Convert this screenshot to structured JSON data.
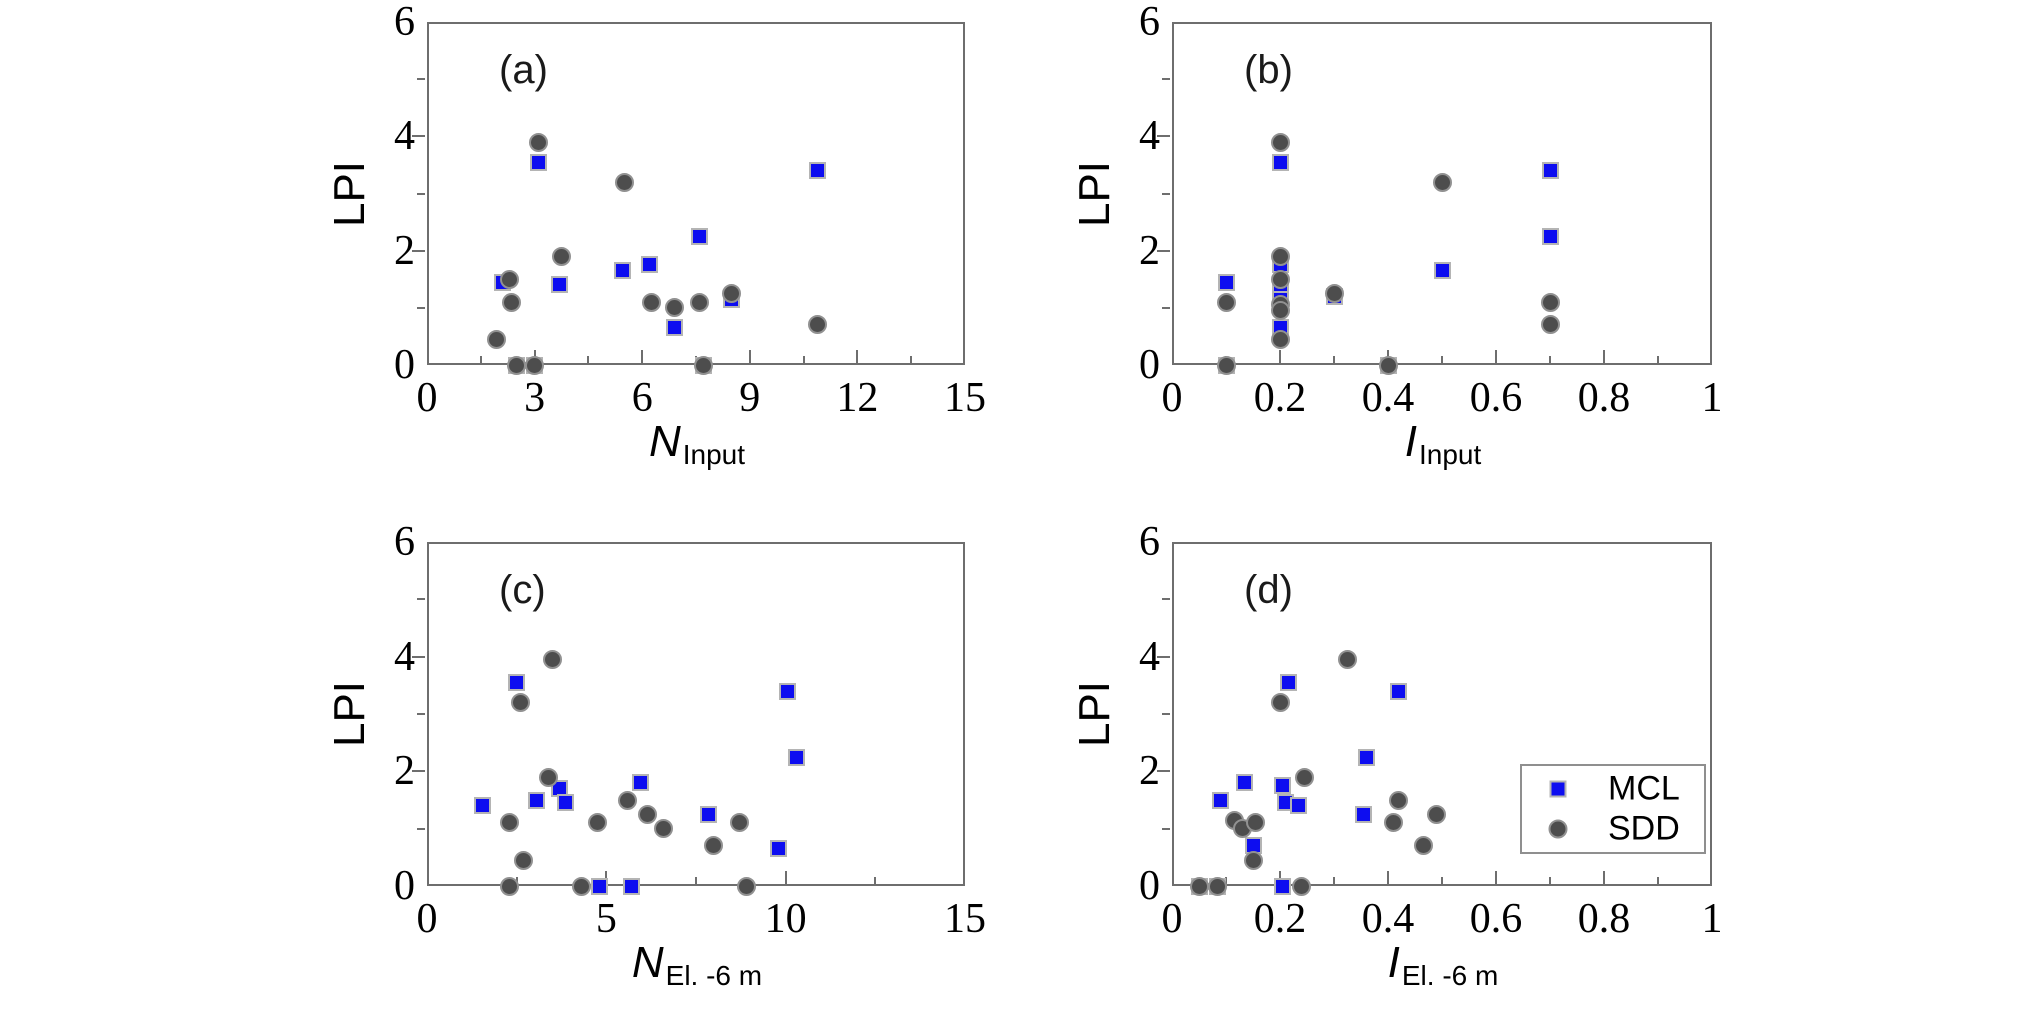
{
  "ylabel": "LPI",
  "colors": {
    "mcl_fill": "#0d0df0",
    "mcl_edge": "#b4b4b4",
    "sdd_fill": "#4d4d4d",
    "sdd_edge": "#919191",
    "axis": "#6e6e6e"
  },
  "legend": {
    "entries": [
      {
        "label": "MCL",
        "series": "mcl"
      },
      {
        "label": "SDD",
        "series": "sdd"
      }
    ]
  },
  "chart_data": [
    {
      "type": "scatter",
      "panel_label": "(a)",
      "xlabel": {
        "main": "N",
        "sub": "Input"
      },
      "ylabel": "LPI",
      "xlim": [
        0,
        15
      ],
      "ylim": [
        0,
        6
      ],
      "grid": false,
      "xticks": [
        {
          "v": 0,
          "label": "0"
        },
        {
          "v": 3,
          "label": "3"
        },
        {
          "v": 6,
          "label": "6"
        },
        {
          "v": 9,
          "label": "9"
        },
        {
          "v": 12,
          "label": "12"
        },
        {
          "v": 15,
          "label": "15"
        }
      ],
      "xminors": [
        1.5,
        4.5,
        7.5,
        10.5,
        13.5
      ],
      "yticks": [
        {
          "v": 0,
          "label": "0"
        },
        {
          "v": 2,
          "label": "2"
        },
        {
          "v": 4,
          "label": "4"
        },
        {
          "v": 6,
          "label": "6"
        }
      ],
      "yminors": [
        1,
        3,
        5
      ],
      "series": [
        {
          "name": "MCL",
          "marker": "square",
          "points": [
            [
              2.1,
              1.45
            ],
            [
              2.5,
              0
            ],
            [
              3.0,
              0
            ],
            [
              3.1,
              3.55
            ],
            [
              3.7,
              1.4
            ],
            [
              5.45,
              1.65
            ],
            [
              6.2,
              1.75
            ],
            [
              6.9,
              0.65
            ],
            [
              7.6,
              2.25
            ],
            [
              7.7,
              0
            ],
            [
              8.5,
              1.15
            ],
            [
              10.9,
              3.4
            ]
          ]
        },
        {
          "name": "SDD",
          "marker": "circle",
          "points": [
            [
              1.95,
              0.45
            ],
            [
              2.3,
              1.5
            ],
            [
              2.35,
              1.1
            ],
            [
              2.5,
              0
            ],
            [
              3.0,
              0
            ],
            [
              3.1,
              3.9
            ],
            [
              3.75,
              1.9
            ],
            [
              5.5,
              3.2
            ],
            [
              6.25,
              1.1
            ],
            [
              6.9,
              1.0
            ],
            [
              7.6,
              1.1
            ],
            [
              7.7,
              0
            ],
            [
              8.5,
              1.25
            ],
            [
              10.9,
              0.7
            ]
          ]
        }
      ],
      "legend_visible": false
    },
    {
      "type": "scatter",
      "panel_label": "(b)",
      "xlabel": {
        "main": "I",
        "sub": "Input"
      },
      "ylabel": "LPI",
      "xlim": [
        0,
        1
      ],
      "ylim": [
        0,
        6
      ],
      "grid": false,
      "xticks": [
        {
          "v": 0,
          "label": "0"
        },
        {
          "v": 0.2,
          "label": "0.2"
        },
        {
          "v": 0.4,
          "label": "0.4"
        },
        {
          "v": 0.6,
          "label": "0.6"
        },
        {
          "v": 0.8,
          "label": "0.8"
        },
        {
          "v": 1,
          "label": "1"
        }
      ],
      "xminors": [
        0.1,
        0.3,
        0.5,
        0.7,
        0.9
      ],
      "yticks": [
        {
          "v": 0,
          "label": "0"
        },
        {
          "v": 2,
          "label": "2"
        },
        {
          "v": 4,
          "label": "4"
        },
        {
          "v": 6,
          "label": "6"
        }
      ],
      "yminors": [
        1,
        3,
        5
      ],
      "series": [
        {
          "name": "MCL",
          "marker": "square",
          "points": [
            [
              0.1,
              1.45
            ],
            [
              0.1,
              0
            ],
            [
              0.2,
              3.55
            ],
            [
              0.2,
              1.75
            ],
            [
              0.2,
              1.4
            ],
            [
              0.2,
              1.3
            ],
            [
              0.2,
              1.15
            ],
            [
              0.2,
              0.65
            ],
            [
              0.3,
              1.2
            ],
            [
              0.4,
              0
            ],
            [
              0.5,
              1.65
            ],
            [
              0.7,
              3.4
            ],
            [
              0.7,
              2.25
            ]
          ]
        },
        {
          "name": "SDD",
          "marker": "circle",
          "points": [
            [
              0.1,
              1.1
            ],
            [
              0.1,
              0
            ],
            [
              0.2,
              3.9
            ],
            [
              0.2,
              1.9
            ],
            [
              0.2,
              1.5
            ],
            [
              0.2,
              1.05
            ],
            [
              0.2,
              0.95
            ],
            [
              0.2,
              0.45
            ],
            [
              0.3,
              1.25
            ],
            [
              0.4,
              0
            ],
            [
              0.5,
              3.2
            ],
            [
              0.7,
              1.1
            ],
            [
              0.7,
              0.7
            ]
          ]
        }
      ],
      "legend_visible": false
    },
    {
      "type": "scatter",
      "panel_label": "(c)",
      "xlabel": {
        "main": "N",
        "sub": "El. -6 m"
      },
      "ylabel": "LPI",
      "xlim": [
        0,
        15
      ],
      "ylim": [
        0,
        6
      ],
      "grid": false,
      "xticks": [
        {
          "v": 0,
          "label": "0"
        },
        {
          "v": 5,
          "label": "5"
        },
        {
          "v": 10,
          "label": "10"
        },
        {
          "v": 15,
          "label": "15"
        }
      ],
      "xminors": [
        2.5,
        7.5,
        12.5
      ],
      "yticks": [
        {
          "v": 0,
          "label": "0"
        },
        {
          "v": 2,
          "label": "2"
        },
        {
          "v": 4,
          "label": "4"
        },
        {
          "v": 6,
          "label": "6"
        }
      ],
      "yminors": [
        1,
        3,
        5
      ],
      "series": [
        {
          "name": "MCL",
          "marker": "square",
          "points": [
            [
              1.55,
              1.4
            ],
            [
              2.5,
              3.55
            ],
            [
              3.05,
              1.5
            ],
            [
              3.7,
              1.7
            ],
            [
              3.85,
              1.45
            ],
            [
              4.8,
              0
            ],
            [
              5.7,
              0
            ],
            [
              5.95,
              1.8
            ],
            [
              7.85,
              1.25
            ],
            [
              9.8,
              0.65
            ],
            [
              10.05,
              3.4
            ],
            [
              10.3,
              2.25
            ]
          ]
        },
        {
          "name": "SDD",
          "marker": "circle",
          "points": [
            [
              2.3,
              1.1
            ],
            [
              2.3,
              0
            ],
            [
              2.6,
              3.2
            ],
            [
              2.7,
              0.45
            ],
            [
              3.4,
              1.9
            ],
            [
              3.5,
              3.95
            ],
            [
              4.3,
              0
            ],
            [
              4.75,
              1.1
            ],
            [
              5.6,
              1.5
            ],
            [
              6.15,
              1.25
            ],
            [
              6.6,
              1.0
            ],
            [
              8.0,
              0.7
            ],
            [
              8.7,
              1.1
            ],
            [
              8.9,
              0
            ]
          ]
        }
      ],
      "legend_visible": false
    },
    {
      "type": "scatter",
      "panel_label": "(d)",
      "xlabel": {
        "main": "I",
        "sub": "El. -6 m"
      },
      "ylabel": "LPI",
      "xlim": [
        0,
        1
      ],
      "ylim": [
        0,
        6
      ],
      "grid": false,
      "xticks": [
        {
          "v": 0,
          "label": "0"
        },
        {
          "v": 0.2,
          "label": "0.2"
        },
        {
          "v": 0.4,
          "label": "0.4"
        },
        {
          "v": 0.6,
          "label": "0.6"
        },
        {
          "v": 0.8,
          "label": "0.8"
        },
        {
          "v": 1,
          "label": "1"
        }
      ],
      "xminors": [
        0.1,
        0.3,
        0.5,
        0.7,
        0.9
      ],
      "yticks": [
        {
          "v": 0,
          "label": "0"
        },
        {
          "v": 2,
          "label": "2"
        },
        {
          "v": 4,
          "label": "4"
        },
        {
          "v": 6,
          "label": "6"
        }
      ],
      "yminors": [
        1,
        3,
        5
      ],
      "series": [
        {
          "name": "MCL",
          "marker": "square",
          "points": [
            [
              0.09,
              1.5
            ],
            [
              0.135,
              1.8
            ],
            [
              0.15,
              0.7
            ],
            [
              0.205,
              1.75
            ],
            [
              0.21,
              1.45
            ],
            [
              0.215,
              3.55
            ],
            [
              0.235,
              1.4
            ],
            [
              0.355,
              1.25
            ],
            [
              0.36,
              2.25
            ],
            [
              0.42,
              3.4
            ],
            [
              0.05,
              0
            ],
            [
              0.085,
              0
            ],
            [
              0.205,
              0
            ]
          ]
        },
        {
          "name": "SDD",
          "marker": "circle",
          "points": [
            [
              0.115,
              1.15
            ],
            [
              0.13,
              1.0
            ],
            [
              0.155,
              1.1
            ],
            [
              0.15,
              0.45
            ],
            [
              0.2,
              3.2
            ],
            [
              0.245,
              1.9
            ],
            [
              0.325,
              3.95
            ],
            [
              0.41,
              1.1
            ],
            [
              0.42,
              1.5
            ],
            [
              0.465,
              0.7
            ],
            [
              0.49,
              1.25
            ],
            [
              0.05,
              0
            ],
            [
              0.085,
              0
            ],
            [
              0.24,
              0
            ]
          ]
        }
      ],
      "legend_visible": true
    }
  ]
}
